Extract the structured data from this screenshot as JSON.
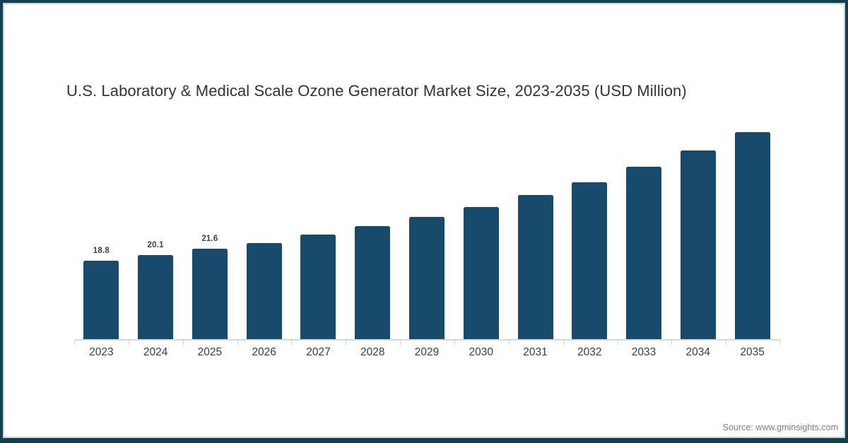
{
  "title": "U.S. Laboratory & Medical Scale Ozone Generator Market Size, 2023-2035 (USD Million)",
  "source_note": "Source: www.gminsights.com",
  "colors": {
    "bar": "#174A6B",
    "frame": "#123E4D",
    "frame_inner_line": "#C9D6D9",
    "axis": "#D8D8D8",
    "title_text": "#333333",
    "category_label_text": "#3D3D3D",
    "value_label_text": "#3F3F3F",
    "source_text": "#7F7F7F"
  },
  "chart_data": {
    "type": "bar",
    "title": "U.S. Laboratory & Medical Scale Ozone Generator Market Size, 2023-2035 (USD Million)",
    "categories": [
      "2023",
      "2024",
      "2025",
      "2026",
      "2027",
      "2028",
      "2029",
      "2030",
      "2031",
      "2032",
      "2033",
      "2034",
      "2035"
    ],
    "values": [
      18.8,
      20.1,
      21.6,
      23.1,
      25.0,
      27.0,
      29.2,
      31.6,
      34.4,
      37.5,
      41.1,
      45.1,
      49.4
    ],
    "value_labels": [
      "18.8",
      "20.1",
      "21.6",
      "",
      "",
      "",
      "",
      "",
      "",
      "",
      "",
      "",
      ""
    ],
    "xlabel": "",
    "ylabel": "",
    "unit": "USD Million",
    "ylim": [
      0,
      55.6
    ],
    "grid": false,
    "legend": "none",
    "y_axis_shown": false
  }
}
